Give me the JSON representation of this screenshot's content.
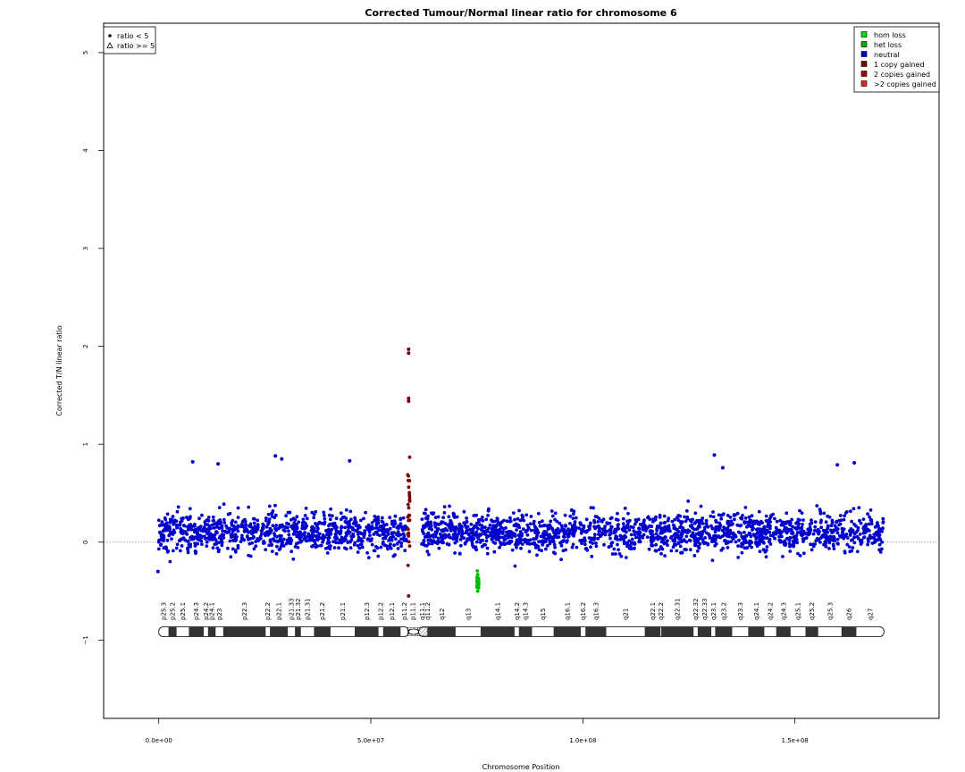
{
  "chart_data": {
    "type": "scatter",
    "title": "Corrected Tumour/Normal linear ratio for chromosome  6",
    "xlabel": "Chromosome Position",
    "ylabel": "Corrected T/N linear ratio",
    "xlim": [
      -13000000,
      184000000
    ],
    "ylim": [
      -1.8,
      5.3
    ],
    "x_ticks": [
      0,
      50000000,
      100000000,
      150000000
    ],
    "x_tick_labels": [
      "0.0e+00",
      "5.0e+07",
      "1.0e+08",
      "1.5e+08"
    ],
    "y_ticks": [
      -1,
      0,
      1,
      2,
      3,
      4,
      5
    ],
    "y_tick_labels": [
      "−1",
      "0",
      "1",
      "2",
      "3",
      "4",
      "5"
    ],
    "reference_line_y": 0,
    "grid": false,
    "series": [
      {
        "name": "neutral",
        "color": "#0000cc",
        "segments": [
          [
            0,
            58500000,
            0.1,
            0.17
          ],
          [
            62000000,
            171000000,
            0.1,
            0.16
          ]
        ],
        "outliers": [
          [
            27500000,
            0.88
          ],
          [
            29000000,
            0.85
          ],
          [
            45000000,
            0.83
          ],
          [
            8000000,
            0.82
          ],
          [
            131000000,
            0.89
          ],
          [
            133000000,
            0.76
          ],
          [
            164000000,
            0.81
          ],
          [
            160000000,
            0.79
          ],
          [
            14000000,
            0.8
          ],
          [
            -200000,
            -0.3
          ]
        ]
      },
      {
        "name": "1 copy gained",
        "color": "#800000",
        "segments": [
          [
            58700000,
            59200000,
            0.3,
            0.55
          ]
        ],
        "outliers": [
          [
            58900000,
            1.97
          ],
          [
            58900000,
            1.93
          ],
          [
            58900000,
            1.47
          ],
          [
            58900000,
            1.44
          ],
          [
            58900000,
            -0.55
          ]
        ]
      },
      {
        "name": "het loss",
        "color": "#00bb00",
        "segments": [
          [
            75000000,
            75500000,
            -0.4,
            0.06
          ]
        ],
        "outliers": [
          [
            75200000,
            -0.5
          ],
          [
            75200000,
            -0.45
          ]
        ]
      }
    ],
    "ideogram": {
      "chromosome": "6",
      "centromere": [
        58900000,
        61300000
      ],
      "bands": [
        {
          "name": "p25.3",
          "start": 0,
          "end": 2300000,
          "stain": "gneg"
        },
        {
          "name": "p25.2",
          "start": 2300000,
          "end": 4200000,
          "stain": "gpos"
        },
        {
          "name": "p25.1",
          "start": 4200000,
          "end": 7100000,
          "stain": "gneg"
        },
        {
          "name": "p24.3",
          "start": 7100000,
          "end": 10600000,
          "stain": "gpos"
        },
        {
          "name": "p24.2",
          "start": 10600000,
          "end": 11600000,
          "stain": "gneg"
        },
        {
          "name": "p24.1",
          "start": 11600000,
          "end": 13400000,
          "stain": "gpos"
        },
        {
          "name": "p23",
          "start": 13400000,
          "end": 15200000,
          "stain": "gneg"
        },
        {
          "name": "p22.3",
          "start": 15200000,
          "end": 25200000,
          "stain": "gpos"
        },
        {
          "name": "p22.2",
          "start": 25200000,
          "end": 26200000,
          "stain": "gneg"
        },
        {
          "name": "p22.1",
          "start": 26200000,
          "end": 30400000,
          "stain": "gpos"
        },
        {
          "name": "p21.33",
          "start": 30400000,
          "end": 32100000,
          "stain": "gneg"
        },
        {
          "name": "p21.32",
          "start": 32100000,
          "end": 33500000,
          "stain": "gpos"
        },
        {
          "name": "p21.31",
          "start": 33500000,
          "end": 36600000,
          "stain": "gneg"
        },
        {
          "name": "p21.2",
          "start": 36600000,
          "end": 40500000,
          "stain": "gpos"
        },
        {
          "name": "p21.1",
          "start": 40500000,
          "end": 46200000,
          "stain": "gneg"
        },
        {
          "name": "p12.3",
          "start": 46200000,
          "end": 51800000,
          "stain": "gpos"
        },
        {
          "name": "p12.2",
          "start": 51800000,
          "end": 52900000,
          "stain": "gneg"
        },
        {
          "name": "p12.1",
          "start": 52900000,
          "end": 57000000,
          "stain": "gpos"
        },
        {
          "name": "p11.2",
          "start": 57000000,
          "end": 58700000,
          "stain": "gneg"
        },
        {
          "name": "p11.1",
          "start": 58700000,
          "end": 61000000,
          "stain": "acen"
        },
        {
          "name": "q11.1",
          "start": 61000000,
          "end": 63300000,
          "stain": "acen"
        },
        {
          "name": "q11.2",
          "start": 63300000,
          "end": 63400000,
          "stain": "gvar"
        },
        {
          "name": "q12",
          "start": 63400000,
          "end": 70000000,
          "stain": "gpos"
        },
        {
          "name": "q13",
          "start": 70000000,
          "end": 75900000,
          "stain": "gneg"
        },
        {
          "name": "q14.1",
          "start": 75900000,
          "end": 83900000,
          "stain": "gpos"
        },
        {
          "name": "q14.2",
          "start": 83900000,
          "end": 84900000,
          "stain": "gneg"
        },
        {
          "name": "q14.3",
          "start": 84900000,
          "end": 88000000,
          "stain": "gpos"
        },
        {
          "name": "q15",
          "start": 88000000,
          "end": 93100000,
          "stain": "gneg"
        },
        {
          "name": "q16.1",
          "start": 93100000,
          "end": 99500000,
          "stain": "gpos"
        },
        {
          "name": "q16.2",
          "start": 99500000,
          "end": 100600000,
          "stain": "gneg"
        },
        {
          "name": "q16.3",
          "start": 100600000,
          "end": 105500000,
          "stain": "gpos"
        },
        {
          "name": "q21",
          "start": 105500000,
          "end": 114600000,
          "stain": "gneg"
        },
        {
          "name": "q22.1",
          "start": 114600000,
          "end": 118300000,
          "stain": "gpos"
        },
        {
          "name": "q22.2",
          "start": 118300000,
          "end": 118500000,
          "stain": "gneg"
        },
        {
          "name": "q22.31",
          "start": 118500000,
          "end": 126100000,
          "stain": "gpos"
        },
        {
          "name": "q22.32",
          "start": 126100000,
          "end": 127100000,
          "stain": "gneg"
        },
        {
          "name": "q22.33",
          "start": 127100000,
          "end": 130300000,
          "stain": "gpos"
        },
        {
          "name": "q23.1",
          "start": 130300000,
          "end": 131200000,
          "stain": "gneg"
        },
        {
          "name": "q23.2",
          "start": 131200000,
          "end": 135200000,
          "stain": "gpos"
        },
        {
          "name": "q23.3",
          "start": 135200000,
          "end": 139000000,
          "stain": "gneg"
        },
        {
          "name": "q24.1",
          "start": 139000000,
          "end": 142800000,
          "stain": "gpos"
        },
        {
          "name": "q24.2",
          "start": 142800000,
          "end": 145600000,
          "stain": "gneg"
        },
        {
          "name": "q24.3",
          "start": 145600000,
          "end": 149000000,
          "stain": "gpos"
        },
        {
          "name": "q25.1",
          "start": 149000000,
          "end": 152500000,
          "stain": "gneg"
        },
        {
          "name": "q25.2",
          "start": 152500000,
          "end": 155500000,
          "stain": "gpos"
        },
        {
          "name": "q25.3",
          "start": 155500000,
          "end": 161000000,
          "stain": "gneg"
        },
        {
          "name": "q26",
          "start": 161000000,
          "end": 164500000,
          "stain": "gpos"
        },
        {
          "name": "q27",
          "start": 164500000,
          "end": 171000000,
          "stain": "gneg"
        }
      ]
    }
  },
  "legend_shape": {
    "position": "top-left",
    "items": [
      {
        "symbol": "dot",
        "label": "ratio < 5"
      },
      {
        "symbol": "triangle",
        "label": "ratio >= 5"
      }
    ]
  },
  "legend_status": {
    "position": "top-right",
    "items": [
      {
        "label": "hom loss",
        "color": "#00dd00"
      },
      {
        "label": "het loss",
        "color": "#00aa00"
      },
      {
        "label": "neutral",
        "color": "#0000cc"
      },
      {
        "label": "1 copy gained",
        "color": "#800000"
      },
      {
        "label": "2 copies gained",
        "color": "#aa0000"
      },
      {
        "label": ">2 copies gained",
        "color": "#ee2222"
      }
    ]
  }
}
